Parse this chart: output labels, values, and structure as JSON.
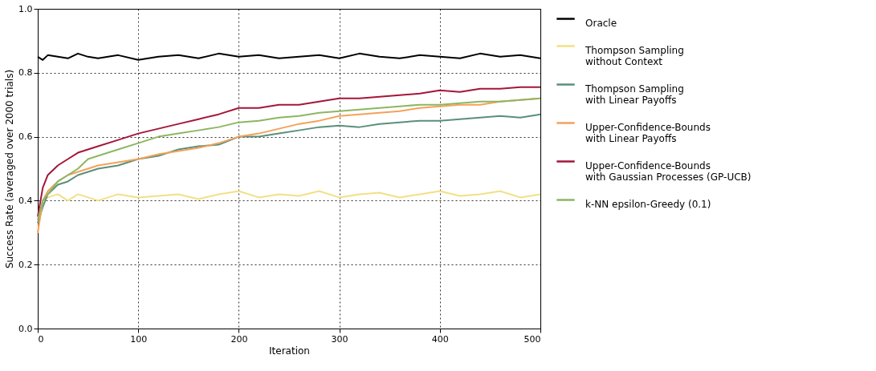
{
  "chart_data": {
    "type": "line",
    "xlabel": "Iteration",
    "ylabel": "Success Rate (averaged over 2000 trials)",
    "x": [
      0,
      5,
      10,
      20,
      30,
      40,
      50,
      60,
      80,
      100,
      120,
      140,
      160,
      180,
      200,
      220,
      240,
      260,
      280,
      300,
      320,
      340,
      360,
      380,
      400,
      420,
      440,
      460,
      480,
      500
    ],
    "series": [
      {
        "name": "Oracle",
        "color": "#000000",
        "values": [
          0.85,
          0.84,
          0.855,
          0.85,
          0.845,
          0.86,
          0.85,
          0.845,
          0.855,
          0.84,
          0.85,
          0.855,
          0.845,
          0.86,
          0.85,
          0.855,
          0.845,
          0.85,
          0.855,
          0.845,
          0.86,
          0.85,
          0.845,
          0.855,
          0.85,
          0.845,
          0.86,
          0.85,
          0.855,
          0.845
        ]
      },
      {
        "name": "Thompson Sampling\nwithout Context",
        "color": "#f2e085",
        "values": [
          0.3,
          0.4,
          0.41,
          0.42,
          0.4,
          0.42,
          0.41,
          0.4,
          0.42,
          0.41,
          0.415,
          0.42,
          0.405,
          0.42,
          0.43,
          0.41,
          0.42,
          0.415,
          0.43,
          0.41,
          0.42,
          0.425,
          0.41,
          0.42,
          0.43,
          0.415,
          0.42,
          0.43,
          0.41,
          0.42
        ]
      },
      {
        "name": "Thompson Sampling\nwith Linear Payoffs",
        "color": "#5a8f7b",
        "values": [
          0.33,
          0.38,
          0.42,
          0.45,
          0.46,
          0.48,
          0.49,
          0.5,
          0.51,
          0.53,
          0.54,
          0.56,
          0.57,
          0.575,
          0.6,
          0.6,
          0.61,
          0.62,
          0.63,
          0.635,
          0.63,
          0.64,
          0.645,
          0.65,
          0.65,
          0.655,
          0.66,
          0.665,
          0.66,
          0.67
        ]
      },
      {
        "name": "Upper-Confidence-Bounds\nwith Linear Payoffs",
        "color": "#f4a259",
        "values": [
          0.3,
          0.4,
          0.43,
          0.46,
          0.48,
          0.49,
          0.5,
          0.51,
          0.52,
          0.53,
          0.545,
          0.555,
          0.565,
          0.58,
          0.6,
          0.61,
          0.625,
          0.64,
          0.65,
          0.665,
          0.67,
          0.675,
          0.68,
          0.69,
          0.695,
          0.7,
          0.7,
          0.71,
          0.715,
          0.72
        ]
      },
      {
        "name": "Upper-Confidence-Bounds\nwith Gaussian Processes (GP-UCB)",
        "color": "#a4163a",
        "values": [
          0.35,
          0.44,
          0.48,
          0.51,
          0.53,
          0.55,
          0.56,
          0.57,
          0.59,
          0.61,
          0.625,
          0.64,
          0.655,
          0.67,
          0.69,
          0.69,
          0.7,
          0.7,
          0.71,
          0.72,
          0.72,
          0.725,
          0.73,
          0.735,
          0.745,
          0.74,
          0.75,
          0.75,
          0.755,
          0.755
        ]
      },
      {
        "name": "k-NN epsilon-Greedy (0.1)",
        "color": "#8db662",
        "values": [
          0.34,
          0.4,
          0.42,
          0.46,
          0.48,
          0.5,
          0.53,
          0.54,
          0.56,
          0.58,
          0.6,
          0.61,
          0.62,
          0.63,
          0.645,
          0.65,
          0.66,
          0.665,
          0.675,
          0.68,
          0.685,
          0.69,
          0.695,
          0.7,
          0.7,
          0.705,
          0.71,
          0.71,
          0.715,
          0.72
        ]
      }
    ],
    "xlim": [
      0,
      500
    ],
    "xticks": [
      0,
      100,
      200,
      300,
      400,
      500
    ],
    "ylim": [
      0,
      1
    ],
    "yticks": [
      {
        "value": 0,
        "label": "0.0"
      },
      {
        "value": 0.2,
        "label": "0.2"
      },
      {
        "value": 0.4,
        "label": "0.4"
      },
      {
        "value": 0.6,
        "label": "0.6"
      },
      {
        "value": 0.8,
        "label": "0.8"
      },
      {
        "value": 1,
        "label": "1.0"
      }
    ],
    "grid": true,
    "legend": "right",
    "line_style": "solid",
    "marker": "none"
  }
}
